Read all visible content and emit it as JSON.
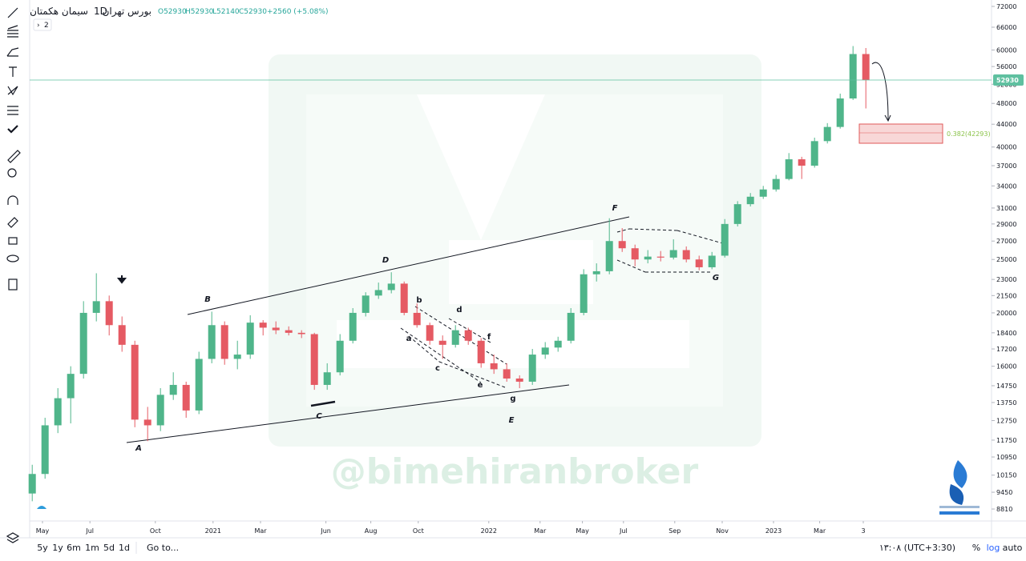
{
  "header": {
    "symbol": "سیمان هکمتان",
    "interval": "1D",
    "exchange": "بورس تهران",
    "open": "O52930",
    "high": "H52930",
    "low": "L52140",
    "close": "C52930",
    "change": "+2560 (+5.08%)",
    "badge": "2"
  },
  "watermark": "@bimehiranbroker",
  "annotations": [
    "A",
    "B",
    "C",
    "D",
    "E",
    "F",
    "G",
    "a",
    "b",
    "c",
    "d",
    "e",
    "f",
    "g"
  ],
  "fib_label": "0.382(42293)",
  "bottom_bar": {
    "ranges": [
      "5y",
      "1y",
      "6m",
      "1m",
      "5d",
      "1d"
    ],
    "goto": "Go to...",
    "time": "۱۳:۰۸ (UTC+3:30)",
    "percent": "%",
    "log": "log",
    "auto": "auto"
  },
  "chart_data": {
    "type": "candlestick",
    "log_scale": true,
    "grid": false,
    "up_color": "#4fb58a",
    "down_color": "#e55a63",
    "last_price": 52930,
    "last_price_color": "#5fc0a0",
    "x": [
      0,
      1,
      2,
      3,
      4,
      5,
      6,
      7,
      8,
      9,
      10,
      11,
      12,
      13,
      14,
      15,
      16,
      17,
      18,
      19,
      20,
      21,
      22,
      23,
      24,
      25,
      26,
      27,
      28,
      29,
      30,
      31,
      32,
      33,
      34,
      35,
      36,
      37,
      38,
      39,
      40,
      41,
      42,
      43,
      44,
      45,
      46,
      47,
      48,
      49,
      50,
      51,
      52,
      53,
      54,
      55,
      56,
      57,
      58,
      59,
      60,
      61,
      62,
      63,
      64,
      65
    ],
    "open": [
      9400,
      10200,
      12500,
      14000,
      15500,
      20000,
      21000,
      19000,
      17500,
      12800,
      12500,
      14200,
      14800,
      13300,
      16500,
      19000,
      16500,
      16800,
      19200,
      18800,
      18600,
      18400,
      18300,
      14800,
      15600,
      17800,
      20000,
      21500,
      22000,
      22600,
      20000,
      19000,
      17800,
      17500,
      18600,
      17800,
      16200,
      15800,
      15200,
      15000,
      16800,
      17300,
      17800,
      20000,
      23500,
      23800,
      27000,
      26200,
      25000,
      25300,
      25200,
      26000,
      25000,
      24200,
      25400,
      29000,
      31500,
      32500,
      33500,
      35000,
      38000,
      37000,
      41000,
      43500,
      49000,
      59000
    ],
    "high": [
      10600,
      12900,
      14600,
      16000,
      21000,
      23600,
      21500,
      19700,
      17800,
      13500,
      14600,
      15600,
      15000,
      17000,
      20100,
      19300,
      17800,
      19800,
      19400,
      19300,
      18900,
      18600,
      18400,
      16200,
      18300,
      20400,
      21800,
      22700,
      23700,
      22800,
      20800,
      19200,
      18200,
      19000,
      18800,
      18000,
      16800,
      16200,
      15400,
      17200,
      17700,
      18100,
      20400,
      24000,
      24600,
      29700,
      28500,
      26600,
      26000,
      25900,
      27200,
      26400,
      25400,
      25800,
      29600,
      31900,
      33000,
      34000,
      35600,
      39000,
      38400,
      41600,
      44200,
      50000,
      61000,
      60500
    ],
    "low": [
      9100,
      10000,
      12100,
      12600,
      15200,
      19300,
      18200,
      17000,
      12400,
      11700,
      12200,
      13900,
      12900,
      13100,
      16200,
      16100,
      15800,
      16500,
      18200,
      18300,
      18200,
      18000,
      14500,
      14500,
      15400,
      17600,
      19700,
      21200,
      21700,
      19800,
      18800,
      17500,
      16500,
      17300,
      17500,
      15900,
      15500,
      15000,
      14600,
      14800,
      16500,
      17000,
      17600,
      19800,
      22800,
      23500,
      25800,
      24300,
      24600,
      24800,
      25000,
      24700,
      23900,
      24000,
      25200,
      28700,
      31200,
      32200,
      33200,
      34800,
      35000,
      36700,
      40600,
      43200,
      48700,
      47000
    ],
    "close": [
      10200,
      12500,
      14000,
      15500,
      20000,
      21000,
      19000,
      17500,
      12800,
      12500,
      14200,
      14800,
      13300,
      16500,
      19000,
      16500,
      16800,
      19200,
      18800,
      18600,
      18400,
      18300,
      14800,
      15600,
      17800,
      20000,
      21500,
      22000,
      22600,
      20000,
      19000,
      17800,
      17500,
      18600,
      17800,
      16200,
      15800,
      15200,
      15000,
      16800,
      17300,
      17800,
      20000,
      23500,
      23800,
      27000,
      26200,
      25000,
      25300,
      25200,
      26000,
      25000,
      24200,
      25400,
      29000,
      31500,
      32500,
      33500,
      35000,
      38000,
      37000,
      41000,
      43500,
      49000,
      59000,
      52930
    ],
    "xlim": [
      -0.2,
      74.8
    ],
    "xticks": [
      {
        "value": 0.8,
        "label": "May"
      },
      {
        "value": 4.5,
        "label": "Jul"
      },
      {
        "value": 9.6,
        "label": "Oct"
      },
      {
        "value": 14.1,
        "label": "2021"
      },
      {
        "value": 17.8,
        "label": "Mar"
      },
      {
        "value": 22.9,
        "label": "Jun"
      },
      {
        "value": 26.4,
        "label": "Aug"
      },
      {
        "value": 30.1,
        "label": "Oct"
      },
      {
        "value": 35.6,
        "label": "2022"
      },
      {
        "value": 39.6,
        "label": "Mar"
      },
      {
        "value": 42.9,
        "label": "May"
      },
      {
        "value": 46.1,
        "label": "Jul"
      },
      {
        "value": 50.1,
        "label": "Sep"
      },
      {
        "value": 53.8,
        "label": "Nov"
      },
      {
        "value": 57.8,
        "label": "2023"
      },
      {
        "value": 61.4,
        "label": "Mar"
      },
      {
        "value": 64.8,
        "label": "3"
      }
    ],
    "ylim": [
      8380,
      73950
    ],
    "yticks": [
      72000,
      66000,
      60000,
      56000,
      52000,
      48000,
      44000,
      40000,
      37000,
      34000,
      31000,
      29000,
      27000,
      25000,
      23000,
      21500,
      20000,
      18400,
      17200,
      16000,
      14750,
      13750,
      12750,
      11750,
      10950,
      10150,
      9450,
      8810
    ]
  }
}
